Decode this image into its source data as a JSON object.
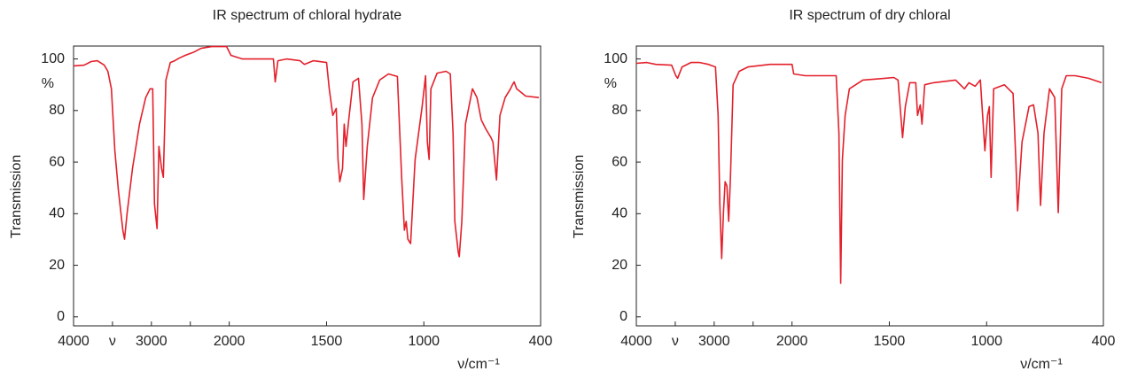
{
  "chart_data": [
    {
      "type": "line",
      "title": "IR spectrum of chloral hydrate",
      "xlabel": "ν/cm⁻¹",
      "ylabel": "Transmission",
      "annotation": "%",
      "xlim": [
        4000,
        400
      ],
      "x_scale_break": 2000,
      "ylim": [
        -3.5,
        105
      ],
      "xticks": [
        4000,
        {
          "value": 3500,
          "label": "ν"
        },
        3000,
        {
          "value": 2500,
          "label": null
        },
        2000,
        1500,
        1000,
        400
      ],
      "yticks": [
        0,
        20,
        40,
        60,
        80,
        100
      ],
      "series": [
        {
          "color": "#e3202b",
          "x": [
            4000,
            3864,
            3774,
            3695,
            3605,
            3559,
            3514,
            3469,
            3424,
            3367,
            3345,
            3311,
            3243,
            3153,
            3073,
            3017,
            2983,
            2960,
            2927,
            2904,
            2870,
            2847,
            2814,
            2757,
            2701,
            2644,
            2565,
            2452,
            2362,
            2226,
            2034,
            1991,
            1932,
            1818,
            1773,
            1764,
            1750,
            1705,
            1636,
            1614,
            1568,
            1500,
            1486,
            1468,
            1450,
            1441,
            1432,
            1418,
            1409,
            1400,
            1386,
            1364,
            1336,
            1318,
            1309,
            1291,
            1264,
            1227,
            1182,
            1136,
            1114,
            1100,
            1091,
            1082,
            1068,
            1045,
            1009,
            991,
            982,
            973,
            964,
            932,
            886,
            864,
            850,
            841,
            823,
            818,
            805,
            786,
            750,
            727,
            705,
            682,
            655,
            645,
            627,
            609,
            582,
            555,
            545,
            536,
            523,
            477,
            409
          ],
          "values": [
            97.3,
            97.6,
            99,
            99.3,
            97.6,
            95.2,
            88.4,
            64.4,
            49,
            33.6,
            30.1,
            40.4,
            57.5,
            74.7,
            85,
            88.4,
            88.4,
            43.8,
            34.2,
            66.1,
            57.5,
            54.1,
            91.8,
            98.6,
            99.3,
            100.3,
            101.4,
            102.7,
            104.1,
            104.8,
            104.8,
            101.4,
            100,
            100,
            100,
            91.1,
            99.3,
            100,
            99.3,
            97.9,
            99.3,
            98.6,
            88.4,
            78.1,
            80.8,
            61,
            52.4,
            57.5,
            74.7,
            66.1,
            76.4,
            91.1,
            92.5,
            74.7,
            45.5,
            66.1,
            84.9,
            91.8,
            94.2,
            93.2,
            54.1,
            33.6,
            37,
            30.1,
            28.4,
            61,
            81.5,
            93.5,
            67.8,
            61,
            88.4,
            94.5,
            95.2,
            94.2,
            71.2,
            37,
            25,
            23.3,
            37,
            74.7,
            88.4,
            85,
            76.4,
            72.9,
            69.5,
            67.8,
            53.1,
            78.1,
            85,
            88.4,
            90,
            91.1,
            88.4,
            85.6,
            85
          ]
        }
      ]
    },
    {
      "type": "line",
      "title": "IR spectrum of dry chloral",
      "xlabel": "ν/cm⁻¹",
      "ylabel": "Transmission",
      "annotation": "%",
      "xlim": [
        4000,
        400
      ],
      "x_scale_break": 2000,
      "ylim": [
        -3.5,
        105
      ],
      "xticks": [
        4000,
        {
          "value": 3500,
          "label": "ν"
        },
        3000,
        {
          "value": 2500,
          "label": null
        },
        2000,
        1500,
        1000,
        400
      ],
      "yticks": [
        0,
        20,
        40,
        60,
        80,
        100
      ],
      "series": [
        {
          "color": "#e3202b",
          "x": [
            4000,
            3864,
            3751,
            3547,
            3492,
            3469,
            3412,
            3299,
            3186,
            3073,
            2983,
            2949,
            2927,
            2904,
            2881,
            2859,
            2836,
            2814,
            2791,
            2757,
            2678,
            2565,
            2282,
            2000,
            1991,
            1932,
            1773,
            1759,
            1750,
            1741,
            1727,
            1705,
            1636,
            1523,
            1477,
            1455,
            1432,
            1418,
            1395,
            1364,
            1355,
            1341,
            1332,
            1318,
            1273,
            1159,
            1114,
            1091,
            1059,
            1032,
            1009,
            995,
            986,
            977,
            964,
            909,
            864,
            850,
            841,
            818,
            782,
            759,
            736,
            723,
            705,
            677,
            650,
            632,
            614,
            591,
            545,
            477,
            409
          ],
          "values": [
            98.3,
            98.6,
            97.9,
            97.6,
            93.5,
            92.5,
            96.9,
            98.6,
            98.6,
            97.9,
            96.9,
            78.1,
            43.8,
            22.6,
            40.4,
            52.4,
            50.7,
            37,
            54.1,
            90,
            95.2,
            96.9,
            97.9,
            97.9,
            94.2,
            93.5,
            93.5,
            71.2,
            13,
            61,
            78.1,
            88.4,
            91.8,
            92.5,
            92.8,
            91.8,
            69.5,
            81.5,
            90.8,
            90.8,
            78.1,
            82.2,
            74.7,
            90,
            90.8,
            91.8,
            88.4,
            90.8,
            89.4,
            91.8,
            64.4,
            78.1,
            81.5,
            54.1,
            88.4,
            90,
            86.6,
            61,
            41.1,
            67.8,
            81.5,
            82.2,
            71.2,
            43.2,
            71.2,
            88.4,
            85,
            40.4,
            88.4,
            93.5,
            93.5,
            92.5,
            90.8
          ]
        }
      ]
    }
  ]
}
